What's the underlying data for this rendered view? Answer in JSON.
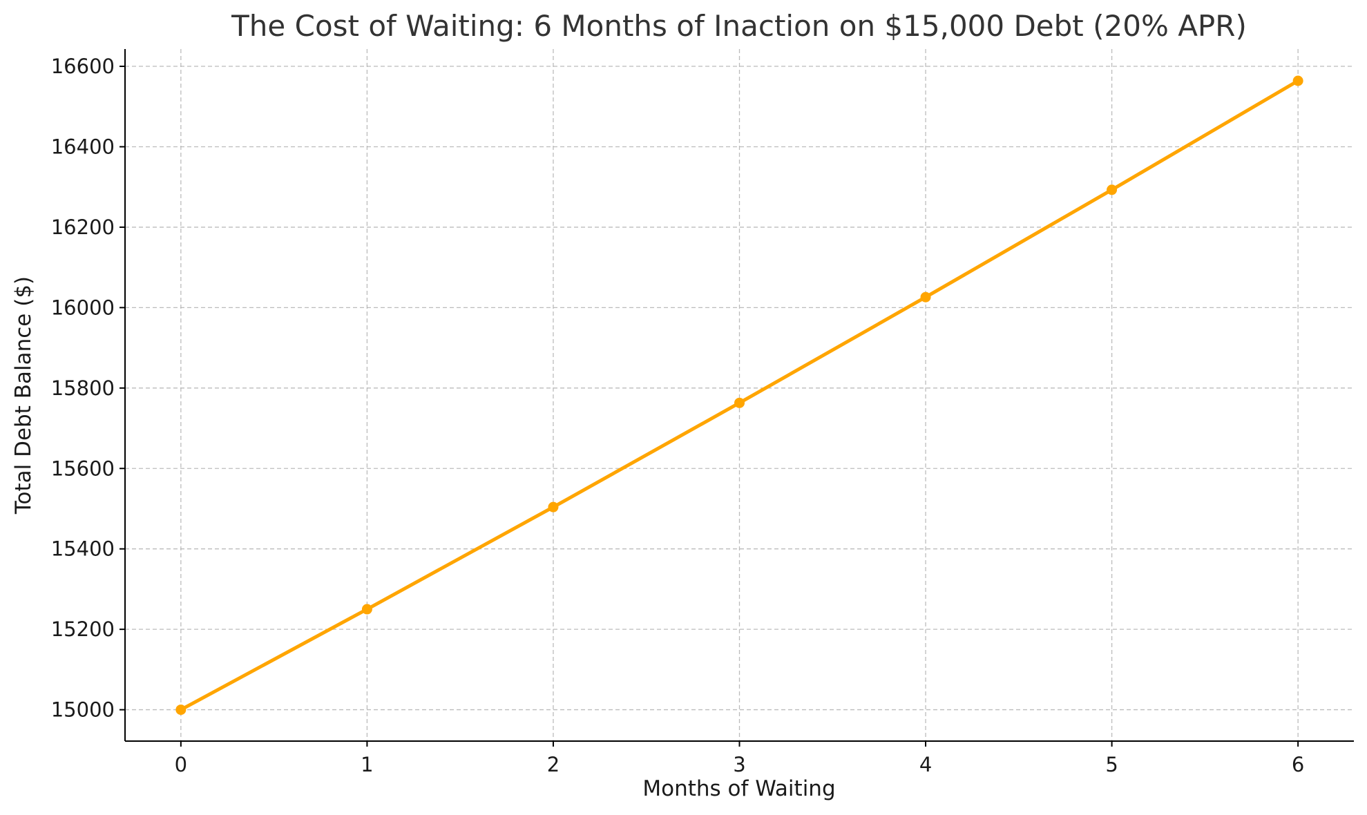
{
  "chart_data": {
    "type": "line",
    "title": "The Cost of Waiting: 6 Months of Inaction on $15,000 Debt (20% APR)",
    "xlabel": "Months of Waiting",
    "ylabel": "Total Debt Balance ($)",
    "x": [
      0,
      1,
      2,
      3,
      4,
      5,
      6
    ],
    "series": [
      {
        "values": [
          15000,
          15250,
          15504,
          15763,
          16026,
          16293,
          16564
        ],
        "color": "#FFA500",
        "marker": "circle"
      }
    ],
    "xticks": [
      0,
      1,
      2,
      3,
      4,
      5,
      6
    ],
    "yticks": [
      15000,
      15200,
      15400,
      15600,
      15800,
      16000,
      16200,
      16400,
      16600
    ],
    "xlim": [
      -0.3,
      6.3
    ],
    "ylim": [
      14922,
      16643
    ],
    "grid": true,
    "grid_style": "dashed"
  }
}
